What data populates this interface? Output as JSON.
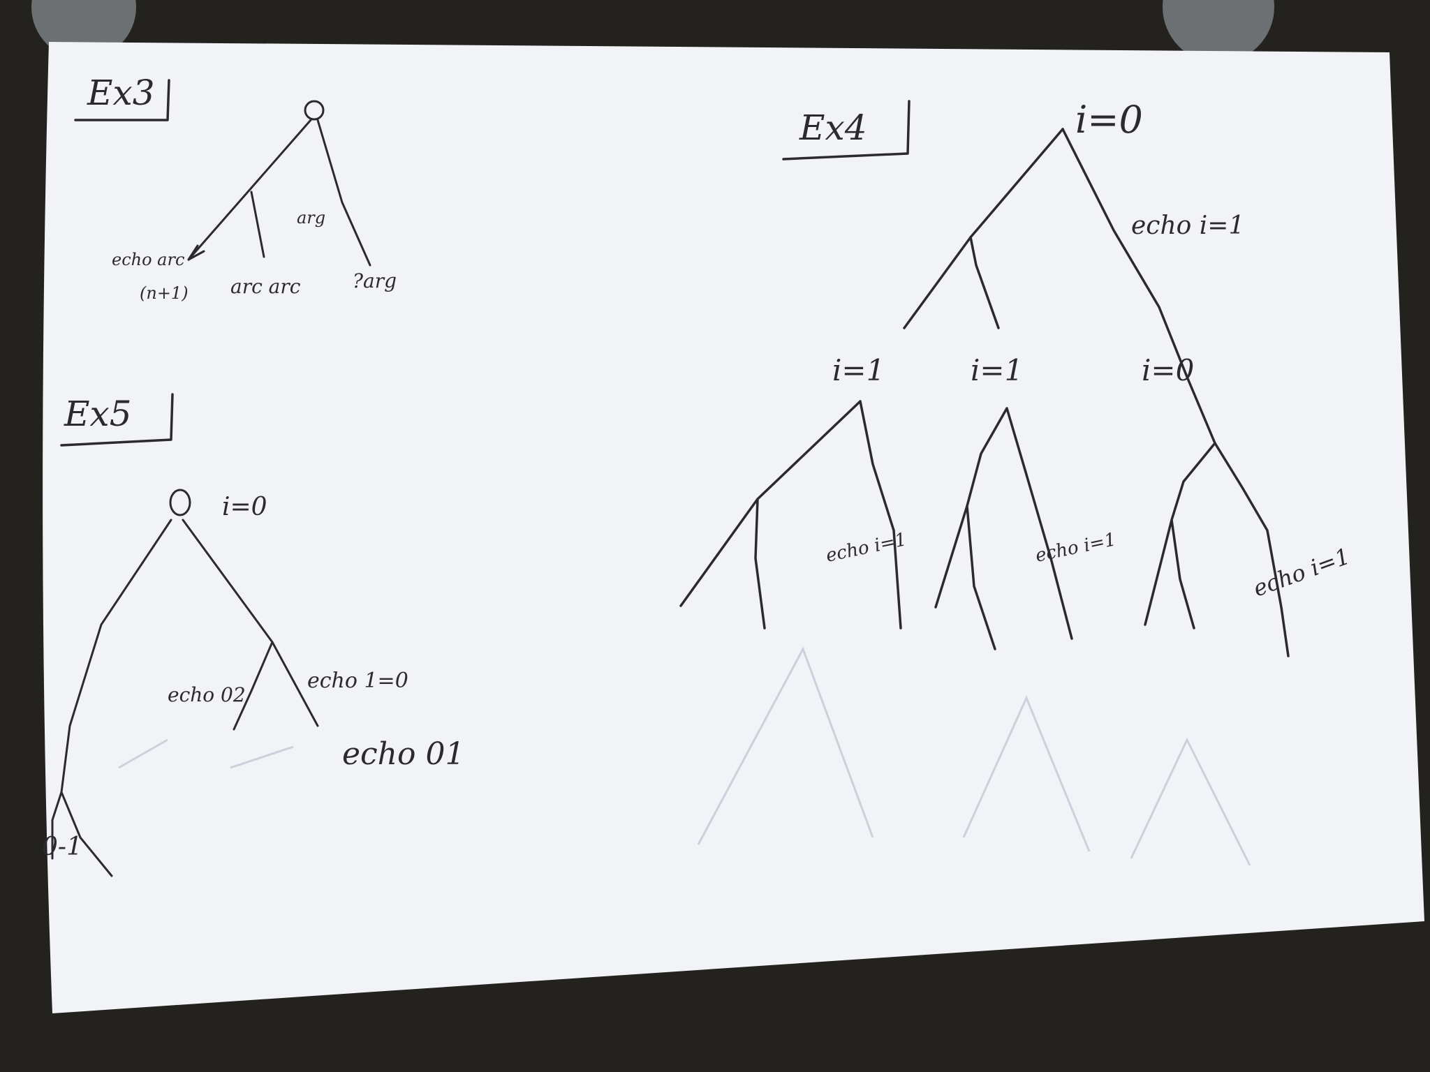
{
  "sheet": {
    "colors": {
      "background": "#23221f",
      "paper": "#f2f3f7",
      "ink": "#2a2a30"
    }
  },
  "ex3": {
    "heading": "Ex3",
    "root": "0",
    "branch_labels": {
      "left": "echo arc",
      "left_sub": "(n+1)",
      "bottom_mid": "arc arc",
      "bottom_right": "?arg",
      "right_scribble": "arg"
    }
  },
  "ex4": {
    "heading": "Ex4",
    "root": "i=0",
    "top_branch_label": "echo i=1",
    "nodes": [
      "i=1",
      "i=1",
      "i=0"
    ],
    "sub_labels": [
      "echo i=1",
      "echo i=1",
      "echo i=1"
    ]
  },
  "ex5": {
    "heading": "Ex5",
    "root": "0",
    "root_label": "i=0",
    "branch_labels": {
      "echo_02": "echo 02",
      "echo_10": "echo 1=0",
      "echo_01": "echo 01",
      "bottom_left": "0-1"
    }
  }
}
